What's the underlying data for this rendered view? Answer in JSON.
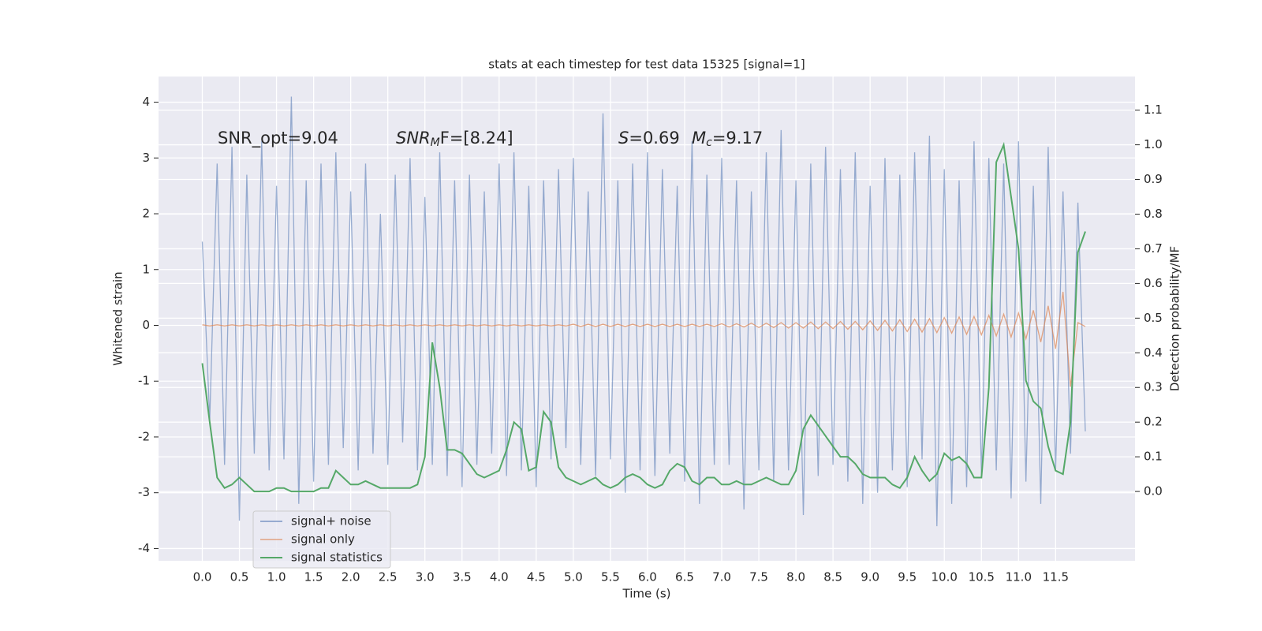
{
  "chart_data": {
    "type": "line",
    "title": "stats at each timestep for test data 15325 [signal=1]",
    "x_label": "Time (s)",
    "y_label": "Whitened strain",
    "y2_label": "Detection probability/MF",
    "annotations": [
      {
        "text": "SNR_opt=9.04"
      },
      {
        "text": "SNR",
        "sub": "M",
        "after": "F=[8.24]"
      },
      {
        "text": "S",
        "after": "=0.69"
      },
      {
        "text": "M",
        "sub": "c",
        "after": "=9.17"
      }
    ],
    "grid": true,
    "legend": "lower left",
    "xlim": [
      -0.59,
      12.57
    ],
    "ylim": [
      -4.22,
      4.46
    ],
    "y2lim": [
      -0.2,
      1.197
    ],
    "xticks": [
      {
        "value": 0,
        "label": "0.0"
      },
      0.5,
      {
        "value": 1,
        "label": "1.0"
      },
      1.5,
      {
        "value": 2,
        "label": "2.0"
      },
      2.5,
      {
        "value": 3,
        "label": "3.0"
      },
      3.5,
      {
        "value": 4,
        "label": "4.0"
      },
      4.5,
      {
        "value": 5,
        "label": "5.0"
      },
      5.5,
      {
        "value": 6,
        "label": "6.0"
      },
      6.5,
      {
        "value": 7,
        "label": "7.0"
      },
      7.5,
      {
        "value": 8,
        "label": "8.0"
      },
      8.5,
      {
        "value": 9,
        "label": "9.0"
      },
      9.5,
      {
        "value": 10,
        "label": "10.0"
      },
      10.5,
      {
        "value": 11,
        "label": "11.0"
      },
      11.5
    ],
    "yticks": [
      -4,
      -3,
      -2,
      -1,
      0,
      1,
      2,
      3,
      4
    ],
    "y2ticks": [
      {
        "value": 0,
        "label": "0.0"
      },
      0.1,
      0.2,
      0.3,
      0.4,
      0.5,
      0.6,
      0.7,
      0.8,
      0.9,
      {
        "value": 1,
        "label": "1.0"
      },
      1.1
    ],
    "x": [
      0.0,
      0.1,
      0.2,
      0.3,
      0.4,
      0.5,
      0.6,
      0.7,
      0.8,
      0.9,
      1.0,
      1.1,
      1.2,
      1.3,
      1.4,
      1.5,
      1.6,
      1.7,
      1.8,
      1.9,
      2.0,
      2.1,
      2.2,
      2.3,
      2.4,
      2.5,
      2.6,
      2.7,
      2.8,
      2.9,
      3.0,
      3.1,
      3.2,
      3.3,
      3.4,
      3.5,
      3.6,
      3.7,
      3.8,
      3.9,
      4.0,
      4.1,
      4.2,
      4.3,
      4.4,
      4.5,
      4.6,
      4.7,
      4.8,
      4.9,
      5.0,
      5.1,
      5.2,
      5.3,
      5.4,
      5.5,
      5.6,
      5.7,
      5.8,
      5.9,
      6.0,
      6.1,
      6.2,
      6.3,
      6.4,
      6.5,
      6.6,
      6.7,
      6.8,
      6.9,
      7.0,
      7.1,
      7.2,
      7.3,
      7.4,
      7.5,
      7.6,
      7.7,
      7.8,
      7.9,
      8.0,
      8.1,
      8.2,
      8.3,
      8.4,
      8.5,
      8.6,
      8.7,
      8.8,
      8.9,
      9.0,
      9.1,
      9.2,
      9.3,
      9.4,
      9.5,
      9.6,
      9.7,
      9.8,
      9.9,
      10.0,
      10.1,
      10.2,
      10.3,
      10.4,
      10.5,
      10.6,
      10.7,
      10.8,
      10.9,
      11.0,
      11.1,
      11.2,
      11.3,
      11.4,
      11.5,
      11.6,
      11.7,
      11.8,
      11.9
    ],
    "series": [
      {
        "name": "signal+ noise",
        "color": "#4c72b0",
        "values": [
          1.5,
          -1.7,
          2.9,
          -2.5,
          3.2,
          -3.5,
          2.7,
          -2.3,
          3.3,
          -2.6,
          2.5,
          -2.4,
          4.1,
          -3.2,
          2.6,
          -2.8,
          2.9,
          -2.5,
          3.1,
          -2.2,
          2.4,
          -2.6,
          2.9,
          -2.3,
          2.0,
          -2.5,
          2.7,
          -2.1,
          3.0,
          -2.6,
          2.3,
          -2.5,
          3.1,
          -2.7,
          2.6,
          -2.9,
          2.7,
          -2.5,
          2.4,
          -2.3,
          2.9,
          -2.7,
          3.1,
          -2.6,
          2.5,
          -2.9,
          2.6,
          -2.4,
          2.8,
          -2.2,
          3.0,
          -2.5,
          2.4,
          -2.7,
          3.8,
          -2.4,
          2.6,
          -3.0,
          2.9,
          -2.6,
          3.1,
          -2.7,
          2.8,
          -2.3,
          2.5,
          -2.8,
          3.3,
          -3.2,
          2.7,
          -2.5,
          3.0,
          -2.5,
          2.6,
          -3.3,
          2.4,
          -2.6,
          3.1,
          -2.8,
          3.5,
          -2.6,
          2.6,
          -3.4,
          2.9,
          -2.7,
          3.2,
          -2.5,
          2.8,
          -2.8,
          3.1,
          -3.2,
          2.5,
          -3.0,
          3.0,
          -2.6,
          2.7,
          -2.9,
          3.1,
          -2.4,
          3.4,
          -3.6,
          2.8,
          -3.2,
          2.6,
          -2.9,
          3.3,
          -2.7,
          3.0,
          -2.6,
          2.9,
          -3.1,
          3.3,
          -2.8,
          2.5,
          -3.2,
          3.2,
          -2.6,
          2.4,
          -2.3,
          2.2,
          -1.9
        ]
      },
      {
        "name": "signal only",
        "color": "#dd8452",
        "values": [
          0.01,
          -0.01,
          0.01,
          -0.01,
          0.01,
          -0.01,
          0.01,
          -0.01,
          0.01,
          -0.01,
          0.01,
          -0.01,
          0.01,
          -0.01,
          0.01,
          -0.01,
          0.01,
          -0.01,
          0.01,
          -0.01,
          0.01,
          -0.01,
          0.01,
          -0.01,
          0.01,
          -0.01,
          0.01,
          -0.01,
          0.01,
          -0.01,
          0.01,
          -0.01,
          0.01,
          -0.01,
          0.01,
          -0.01,
          0.01,
          -0.01,
          0.01,
          -0.01,
          0.01,
          -0.01,
          0.01,
          -0.01,
          0.01,
          -0.01,
          0.01,
          -0.01,
          0.01,
          -0.01,
          0.02,
          -0.02,
          0.02,
          -0.02,
          0.02,
          -0.02,
          0.02,
          -0.02,
          0.02,
          -0.02,
          0.02,
          -0.02,
          0.02,
          -0.02,
          0.02,
          -0.02,
          0.02,
          -0.02,
          0.02,
          -0.02,
          0.03,
          -0.03,
          0.03,
          -0.03,
          0.04,
          -0.04,
          0.04,
          -0.04,
          0.05,
          -0.05,
          0.05,
          -0.05,
          0.06,
          -0.06,
          0.06,
          -0.06,
          0.07,
          -0.07,
          0.07,
          -0.08,
          0.08,
          -0.09,
          0.09,
          -0.1,
          0.1,
          -0.11,
          0.11,
          -0.12,
          0.12,
          -0.13,
          0.14,
          -0.14,
          0.15,
          -0.16,
          0.16,
          -0.17,
          0.18,
          -0.19,
          0.2,
          -0.21,
          0.22,
          -0.24,
          0.27,
          -0.3,
          0.35,
          -0.42,
          0.6,
          -1.1,
          0.05,
          -0.02
        ]
      },
      {
        "name": "signal statistics",
        "color": "#55a868",
        "axis": "y2",
        "values": [
          0.37,
          0.2,
          0.04,
          0.01,
          0.02,
          0.04,
          0.02,
          0.0,
          0.0,
          0.0,
          0.01,
          0.01,
          0.0,
          0.0,
          0.0,
          0.0,
          0.01,
          0.01,
          0.06,
          0.04,
          0.02,
          0.02,
          0.03,
          0.02,
          0.01,
          0.01,
          0.01,
          0.01,
          0.01,
          0.02,
          0.1,
          0.43,
          0.3,
          0.12,
          0.12,
          0.11,
          0.08,
          0.05,
          0.04,
          0.05,
          0.06,
          0.12,
          0.2,
          0.18,
          0.06,
          0.07,
          0.23,
          0.2,
          0.07,
          0.04,
          0.03,
          0.02,
          0.03,
          0.04,
          0.02,
          0.01,
          0.02,
          0.04,
          0.05,
          0.04,
          0.02,
          0.01,
          0.02,
          0.06,
          0.08,
          0.07,
          0.03,
          0.02,
          0.04,
          0.04,
          0.02,
          0.02,
          0.03,
          0.02,
          0.02,
          0.03,
          0.04,
          0.03,
          0.02,
          0.02,
          0.06,
          0.18,
          0.22,
          0.19,
          0.16,
          0.13,
          0.1,
          0.1,
          0.08,
          0.05,
          0.04,
          0.04,
          0.04,
          0.02,
          0.01,
          0.04,
          0.1,
          0.06,
          0.03,
          0.05,
          0.11,
          0.09,
          0.1,
          0.08,
          0.04,
          0.04,
          0.3,
          0.95,
          1.0,
          0.85,
          0.7,
          0.32,
          0.26,
          0.24,
          0.13,
          0.06,
          0.05,
          0.2,
          0.69,
          0.75
        ]
      }
    ]
  }
}
